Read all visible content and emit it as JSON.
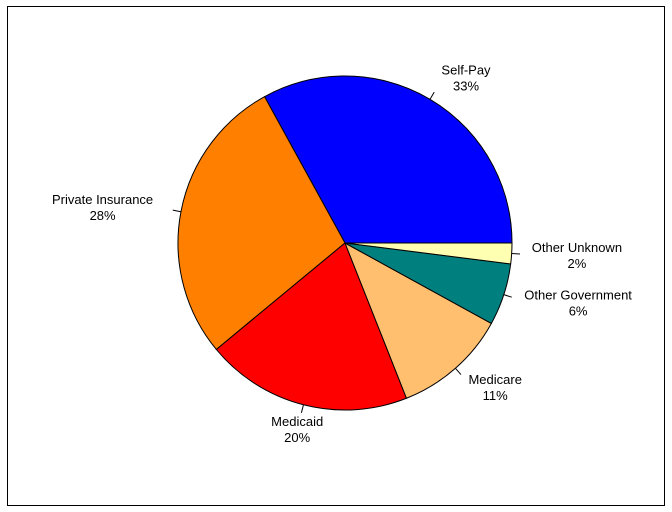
{
  "chart_data": {
    "type": "pie",
    "title": "",
    "start_angle_deg": 0,
    "direction": "counterclockwise",
    "slices": [
      {
        "label": "Self-Pay",
        "pct_label": "33%",
        "value": 33,
        "color": "#0000FF"
      },
      {
        "label": "Private Insurance",
        "pct_label": "28%",
        "value": 28,
        "color": "#FF7F00"
      },
      {
        "label": "Medicaid",
        "pct_label": "20%",
        "value": 20,
        "color": "#FF0000"
      },
      {
        "label": "Medicare",
        "pct_label": "11%",
        "value": 11,
        "color": "#FFBF6F"
      },
      {
        "label": "Other Government",
        "pct_label": "6%",
        "value": 6,
        "color": "#007F7F"
      },
      {
        "label": "Other Unknown",
        "pct_label": "2%",
        "value": 2,
        "color": "#FFFFB2"
      }
    ],
    "slice_border_color": "#000000",
    "legend": "none"
  }
}
